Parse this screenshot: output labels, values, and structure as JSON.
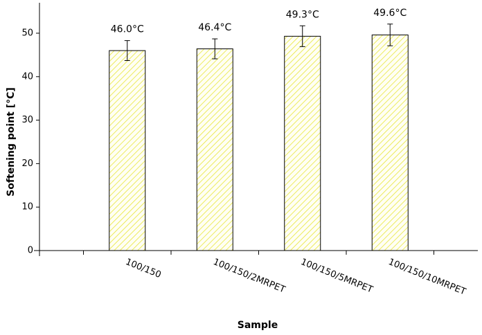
{
  "chart_data": {
    "type": "bar",
    "xlabel": "Sample",
    "ylabel": "Softening point [°C]",
    "categories": [
      "100/150",
      "100/150/2MRPET",
      "100/150/5MRPET",
      "100/150/10MRPET"
    ],
    "values": [
      46.0,
      46.4,
      49.3,
      49.6
    ],
    "value_labels": [
      "46.0°C",
      "46.4°C",
      "49.3°C",
      "49.6°C"
    ],
    "errors": [
      2.3,
      2.3,
      2.4,
      2.5
    ],
    "color": "#e8e63a",
    "ylim": [
      0,
      57
    ],
    "yticks": [
      0,
      10,
      20,
      30,
      40,
      50
    ],
    "grid": false
  }
}
